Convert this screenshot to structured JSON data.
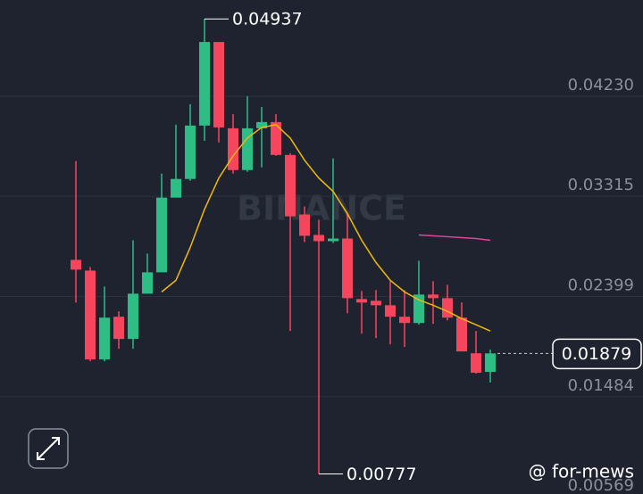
{
  "chart_data": {
    "type": "candlestick",
    "up_color": "#2ebd85",
    "down_color": "#f6465d",
    "grid": true,
    "ylim": [
      0.00569,
      0.0511
    ],
    "yticks": [
      {
        "value": 0.0423,
        "label": "0.04230"
      },
      0.03315,
      0.02399,
      0.01484,
      0.00569
    ],
    "open": [
      0.02734,
      0.02636,
      0.01824,
      0.02214,
      0.02011,
      0.02425,
      0.0262,
      0.03303,
      0.03474,
      0.03962,
      0.04726,
      0.03937,
      0.03555,
      0.03937,
      0.03994,
      0.03693,
      0.03149,
      0.02962,
      0.02905,
      0.02929,
      0.02376,
      0.0236,
      0.02319,
      0.02214,
      0.02157,
      0.02417,
      0.02384,
      0.02206,
      0.0188,
      0.0171
    ],
    "high": [
      0.03637,
      0.02669,
      0.0249,
      0.02263,
      0.02913,
      0.02791,
      0.03523,
      0.0397,
      0.04157,
      0.04937,
      0.04726,
      0.04067,
      0.0423,
      0.04132,
      0.04067,
      0.0371,
      0.03222,
      0.031,
      0.03661,
      0.03157,
      0.0245,
      0.02458,
      0.02539,
      0.02458,
      0.02726,
      0.02539,
      0.02506,
      0.02345,
      0.02084,
      0.01913
    ],
    "low": [
      0.02344,
      0.01807,
      0.01807,
      0.01921,
      0.01921,
      0.02425,
      0.0262,
      0.03303,
      0.03458,
      0.03823,
      0.03807,
      0.03523,
      0.03539,
      0.0358,
      0.03685,
      0.02084,
      0.02897,
      0.00777,
      0.02889,
      0.02246,
      0.02059,
      0.02019,
      0.01962,
      0.01937,
      0.02141,
      0.02149,
      0.02181,
      0.01897,
      0.01694,
      0.01612
    ],
    "close": [
      0.02645,
      0.01824,
      0.02206,
      0.02011,
      0.02425,
      0.0262,
      0.03303,
      0.03474,
      0.03962,
      0.04726,
      0.03945,
      0.03555,
      0.03937,
      0.03994,
      0.03693,
      0.03132,
      0.02954,
      0.02905,
      0.02929,
      0.02384,
      0.02344,
      0.02319,
      0.02214,
      0.02157,
      0.02417,
      0.02384,
      0.02206,
      0.01897,
      0.01702,
      0.01879
    ],
    "lines": [
      {
        "color": "#f0b90b",
        "values": [
          null,
          null,
          null,
          null,
          null,
          null,
          0.02441,
          0.02547,
          0.02848,
          0.03197,
          0.03482,
          0.03685,
          0.03848,
          0.03945,
          0.0397,
          0.03848,
          0.03645,
          0.03482,
          0.0336,
          0.03157,
          0.02913,
          0.0271,
          0.02547,
          0.02441,
          0.02368,
          0.02319,
          0.02263,
          0.02197,
          0.02141,
          0.02084
        ]
      },
      {
        "color": "#d9479a",
        "values": [
          null,
          null,
          null,
          null,
          null,
          null,
          null,
          null,
          null,
          null,
          null,
          null,
          null,
          null,
          null,
          null,
          null,
          null,
          null,
          null,
          null,
          null,
          null,
          null,
          0.02962,
          0.02954,
          0.02946,
          0.02937,
          0.02929,
          0.02913
        ]
      }
    ],
    "max_marker": {
      "value": 0.04937,
      "label": "0.04937"
    },
    "min_marker": {
      "value": 0.00777,
      "label": "0.00777"
    },
    "last_price": {
      "value": 0.01879,
      "label": "0.01879"
    },
    "watermark": "BINANCE",
    "credit": "@ for-mews"
  }
}
